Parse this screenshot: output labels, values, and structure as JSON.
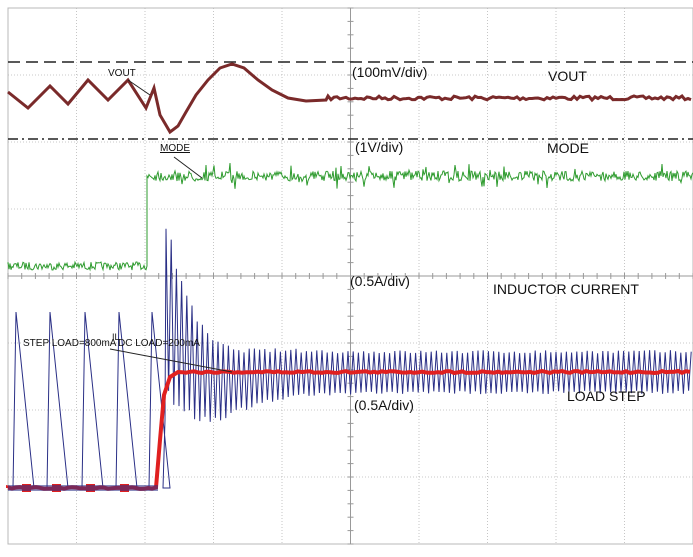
{
  "chart_data": {
    "type": "line",
    "grid": true,
    "grid_divisions": {
      "x": 10,
      "y": 8
    },
    "series": [
      {
        "name": "VOUT",
        "color": "#7a2a2a",
        "scale_label": "(100mV/div)"
      },
      {
        "name": "MODE",
        "color": "#2e9b2e",
        "scale_label": "(1V/div)"
      },
      {
        "name": "INDUCTOR CURRENT",
        "color": "#2a2f86",
        "scale_label": "(0.5A/div)"
      },
      {
        "name": "LOAD STEP",
        "color": "#e02020",
        "scale_label": "(0.5A/div)"
      }
    ],
    "annotations": {
      "vout_marker": "VOUT",
      "mode_marker": "MODE",
      "step_load": "STEP LOAD=800mA",
      "il_marker": "IL",
      "dc_load": "DC LOAD=200mA"
    },
    "colors": {
      "background": "#ffffff",
      "grid": "#b8b8b8",
      "dashed_ref": "#222222"
    }
  }
}
